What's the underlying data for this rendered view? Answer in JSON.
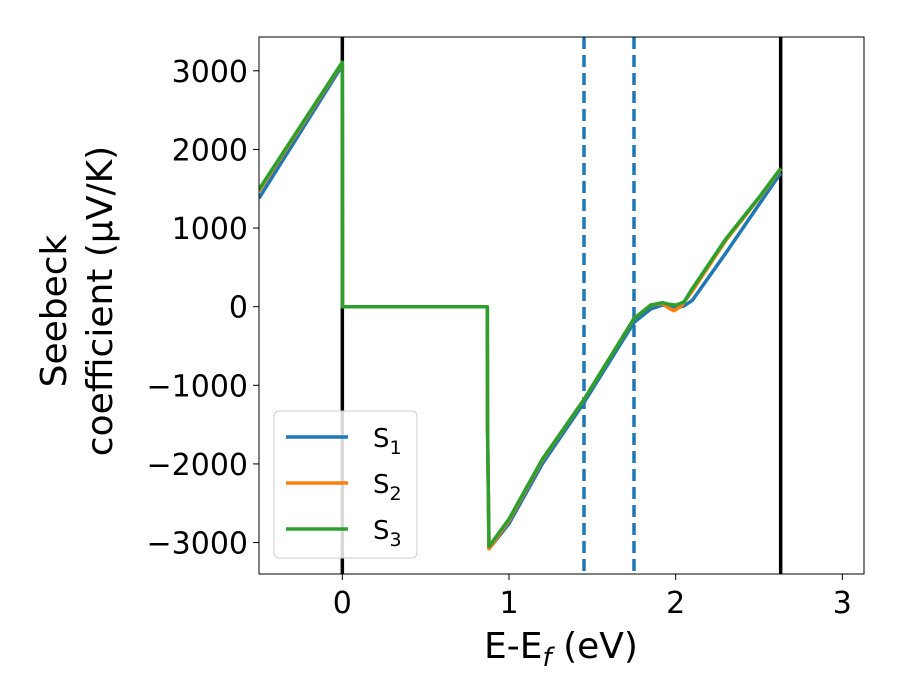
{
  "chart_data": {
    "type": "line",
    "xlabel": "E-E_f (eV)",
    "ylabel_line1": "Seebeck",
    "ylabel_line2": "coefficient  (μV/K)",
    "xlim": [
      -0.5,
      3.13
    ],
    "ylim": [
      -3400,
      3430
    ],
    "x_ticks": [
      {
        "value": 0,
        "label": "0"
      },
      {
        "value": 1,
        "label": "1"
      },
      {
        "value": 2,
        "label": "2"
      },
      {
        "value": 3,
        "label": "3"
      }
    ],
    "y_ticks": [
      {
        "value": 3000,
        "label": "3000"
      },
      {
        "value": 2000,
        "label": "2000"
      },
      {
        "value": 1000,
        "label": "1000"
      },
      {
        "value": 0,
        "label": "0"
      },
      {
        "value": -1000,
        "label": "−1000"
      },
      {
        "value": -2000,
        "label": "−2000"
      },
      {
        "value": -3000,
        "label": "−3000"
      }
    ],
    "vlines_solid": [
      0.0,
      2.63
    ],
    "vlines_dashed": [
      1.45,
      1.75
    ],
    "colors": {
      "s1": "#1f77b4",
      "s2": "#ff7f0e",
      "s3": "#2ca02c",
      "solid_vline": "#000000",
      "dashed_vline": "#1f77b4"
    },
    "legend": {
      "position": "lower-left",
      "entries": [
        {
          "base": "S",
          "sub": "1"
        },
        {
          "base": "S",
          "sub": "2"
        },
        {
          "base": "S",
          "sub": "3"
        }
      ]
    },
    "series": [
      {
        "name": "S1",
        "x": [
          -0.5,
          0.0,
          0.001,
          0.87,
          0.871,
          0.88,
          1.0,
          1.2,
          1.45,
          1.75,
          1.85,
          1.92,
          1.96,
          2.0,
          2.05,
          2.1,
          2.3,
          2.5,
          2.63
        ],
        "y": [
          1380,
          3070,
          0,
          0,
          -1500,
          -3080,
          -2760,
          -2000,
          -1220,
          -200,
          -30,
          20,
          10,
          -20,
          10,
          80,
          680,
          1300,
          1700
        ]
      },
      {
        "name": "S2",
        "x": [
          -0.5,
          0.0,
          0.001,
          0.87,
          0.871,
          0.88,
          1.0,
          1.2,
          1.45,
          1.75,
          1.85,
          1.92,
          1.96,
          1.99,
          2.03,
          2.1,
          2.3,
          2.5,
          2.63
        ],
        "y": [
          1470,
          3100,
          0,
          0,
          -1500,
          -3080,
          -2720,
          -1950,
          -1180,
          -150,
          20,
          40,
          -20,
          -50,
          0,
          200,
          840,
          1380,
          1750
        ]
      },
      {
        "name": "S3",
        "x": [
          -0.5,
          0.0,
          0.001,
          0.87,
          0.871,
          0.88,
          1.0,
          1.2,
          1.45,
          1.75,
          1.85,
          1.92,
          1.96,
          2.0,
          2.05,
          2.1,
          2.3,
          2.5,
          2.63
        ],
        "y": [
          1490,
          3110,
          0,
          0,
          -1500,
          -3050,
          -2700,
          -1940,
          -1180,
          -150,
          20,
          50,
          30,
          20,
          60,
          230,
          860,
          1390,
          1760
        ]
      }
    ]
  }
}
